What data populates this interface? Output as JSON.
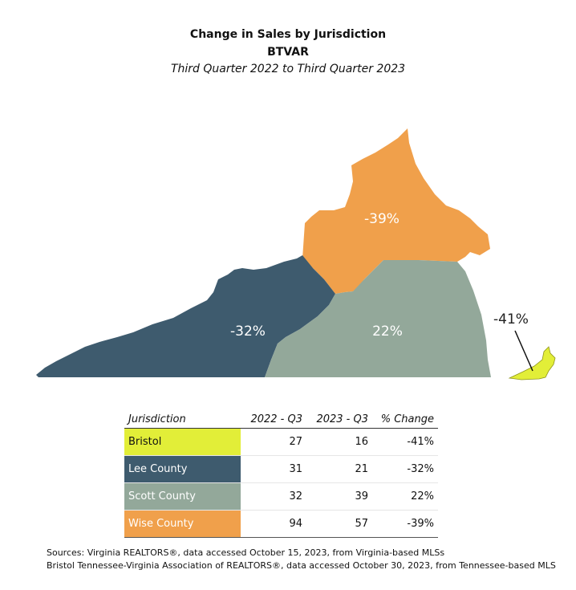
{
  "title": "Change in Sales by Jurisdiction",
  "org": "BTVAR",
  "subtitle": "Third Quarter 2022 to Third Quarter 2023",
  "regions": [
    {
      "name": "Wise County",
      "change_label": "-39%",
      "color": "#F0A04B"
    },
    {
      "name": "Lee County",
      "change_label": "-32%",
      "color": "#3E5B6E"
    },
    {
      "name": "Scott County",
      "change_label": "22%",
      "color": "#93A89A"
    },
    {
      "name": "Bristol",
      "change_label": "-41%",
      "color": "#E2EE38"
    }
  ],
  "table": {
    "headers": [
      "Jurisdiction",
      "2022 - Q3",
      "2023 - Q3",
      "% Change"
    ],
    "rows": [
      {
        "name": "Bristol",
        "q2022": "27",
        "q2023": "16",
        "change": "-41%",
        "color": "#E2EE38"
      },
      {
        "name": "Lee County",
        "q2022": "31",
        "q2023": "21",
        "change": "-32%",
        "color": "#3E5B6E"
      },
      {
        "name": "Scott County",
        "q2022": "32",
        "q2023": "39",
        "change": "22%",
        "color": "#93A89A"
      },
      {
        "name": "Wise County",
        "q2022": "94",
        "q2023": "57",
        "change": "-39%",
        "color": "#F0A04B"
      }
    ]
  },
  "sources": [
    "Sources: Virginia REALTORS®, data accessed October 15, 2023, from Virginia-based MLSs",
    "Bristol Tennessee-Virginia Association of REALTORS®, data accessed October 30, 2023, from Tennessee-based MLS"
  ]
}
